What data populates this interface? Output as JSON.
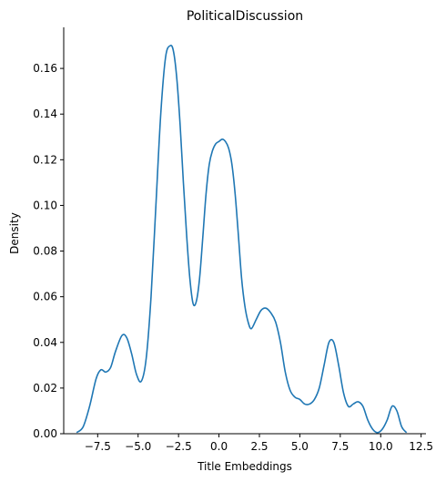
{
  "chart_data": {
    "type": "line",
    "title": "PoliticalDiscussion",
    "xlabel": "Title Embeddings",
    "ylabel": "Density",
    "xlim": [
      -9.6,
      12.8
    ],
    "ylim": [
      0,
      0.178
    ],
    "x_ticks": [
      -7.5,
      -5.0,
      -2.5,
      0.0,
      2.5,
      5.0,
      7.5,
      10.0,
      12.5
    ],
    "x_tick_labels": [
      "−7.5",
      "−5.0",
      "−2.5",
      "0.0",
      "2.5",
      "5.0",
      "7.5",
      "10.0",
      "12.5"
    ],
    "y_ticks": [
      0.0,
      0.02,
      0.04,
      0.06,
      0.08,
      0.1,
      0.12,
      0.14,
      0.16
    ],
    "y_tick_labels": [
      "0.00",
      "0.02",
      "0.04",
      "0.06",
      "0.08",
      "0.10",
      "0.12",
      "0.14",
      "0.16"
    ],
    "grid": false,
    "series": [
      {
        "color": "#1f77b4",
        "x": [
          -8.8,
          -8.4,
          -8.0,
          -7.6,
          -7.3,
          -7.0,
          -6.7,
          -6.4,
          -6.0,
          -5.7,
          -5.4,
          -5.1,
          -4.8,
          -4.5,
          -4.2,
          -3.9,
          -3.6,
          -3.3,
          -3.0,
          -2.8,
          -2.6,
          -2.4,
          -2.2,
          -2.0,
          -1.8,
          -1.6,
          -1.4,
          -1.2,
          -1.0,
          -0.8,
          -0.6,
          -0.4,
          -0.2,
          0.0,
          0.2,
          0.4,
          0.6,
          0.8,
          1.0,
          1.2,
          1.4,
          1.6,
          1.8,
          2.0,
          2.3,
          2.6,
          2.9,
          3.2,
          3.5,
          3.8,
          4.1,
          4.4,
          4.7,
          5.0,
          5.3,
          5.6,
          5.9,
          6.2,
          6.5,
          6.8,
          7.1,
          7.4,
          7.7,
          8.0,
          8.3,
          8.6,
          8.9,
          9.2,
          9.5,
          9.8,
          10.1,
          10.4,
          10.7,
          11.0,
          11.3,
          11.6
        ],
        "y": [
          0.0005,
          0.003,
          0.012,
          0.024,
          0.028,
          0.027,
          0.029,
          0.036,
          0.043,
          0.042,
          0.035,
          0.026,
          0.023,
          0.033,
          0.06,
          0.1,
          0.14,
          0.165,
          0.17,
          0.167,
          0.155,
          0.135,
          0.11,
          0.087,
          0.068,
          0.057,
          0.058,
          0.068,
          0.086,
          0.105,
          0.118,
          0.124,
          0.127,
          0.128,
          0.129,
          0.128,
          0.125,
          0.118,
          0.105,
          0.087,
          0.068,
          0.056,
          0.049,
          0.046,
          0.05,
          0.054,
          0.055,
          0.053,
          0.049,
          0.04,
          0.027,
          0.019,
          0.016,
          0.015,
          0.013,
          0.013,
          0.015,
          0.02,
          0.03,
          0.04,
          0.04,
          0.03,
          0.018,
          0.012,
          0.013,
          0.014,
          0.012,
          0.006,
          0.002,
          0.0005,
          0.002,
          0.006,
          0.012,
          0.01,
          0.003,
          0.0005
        ]
      }
    ]
  }
}
